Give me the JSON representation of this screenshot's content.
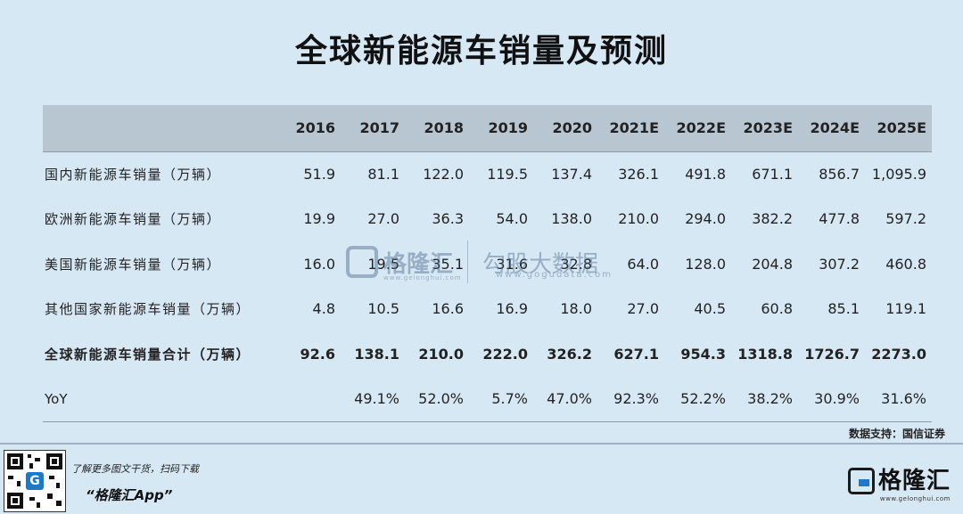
{
  "title": "全球新能源车销量及预测",
  "table": {
    "headers": [
      "",
      "2016",
      "2017",
      "2018",
      "2019",
      "2020",
      "2021E",
      "2022E",
      "2023E",
      "2024E",
      "2025E"
    ],
    "rows": [
      {
        "label": "国内新能源车销量（万辆）",
        "values": [
          "51.9",
          "81.1",
          "122.0",
          "119.5",
          "137.4",
          "326.1",
          "491.8",
          "671.1",
          "856.7",
          "1,095.9"
        ]
      },
      {
        "label": "欧洲新能源车销量（万辆）",
        "values": [
          "19.9",
          "27.0",
          "36.3",
          "54.0",
          "138.0",
          "210.0",
          "294.0",
          "382.2",
          "477.8",
          "597.2"
        ]
      },
      {
        "label": "美国新能源车销量（万辆）",
        "values": [
          "16.0",
          "19.5",
          "35.1",
          "31.6",
          "32.8",
          "64.0",
          "128.0",
          "204.8",
          "307.2",
          "460.8"
        ]
      },
      {
        "label": "其他国家新能源车销量（万辆）",
        "values": [
          "4.8",
          "10.5",
          "16.6",
          "16.9",
          "18.0",
          "27.0",
          "40.5",
          "60.8",
          "85.1",
          "119.1"
        ]
      },
      {
        "label": "全球新能源车销量合计（万辆）",
        "values": [
          "92.6",
          "138.1",
          "210.0",
          "222.0",
          "326.2",
          "627.1",
          "954.3",
          "1318.8",
          "1726.7",
          "2273.0"
        ]
      },
      {
        "label": "YoY",
        "values": [
          "",
          "49.1%",
          "52.0%",
          "5.7%",
          "47.0%",
          "92.3%",
          "52.2%",
          "38.2%",
          "30.9%",
          "31.6%"
        ]
      }
    ]
  },
  "source": "数据支持：国信证券",
  "watermark": {
    "brand": "格隆汇",
    "brand_url": "www.gelonghui.com",
    "sub_brand": "勾股大数据",
    "sub_url": "www.gogudata.com"
  },
  "footer": {
    "tagline": "了解更多图文干货，扫码下载",
    "app_name": "“格隆汇App”",
    "logo_text": "格隆汇",
    "logo_url": "www.gelonghui.com"
  },
  "colors": {
    "background": "#d7e8f5",
    "header_bg": "#b8c6d2",
    "accent": "#1c78c9"
  }
}
